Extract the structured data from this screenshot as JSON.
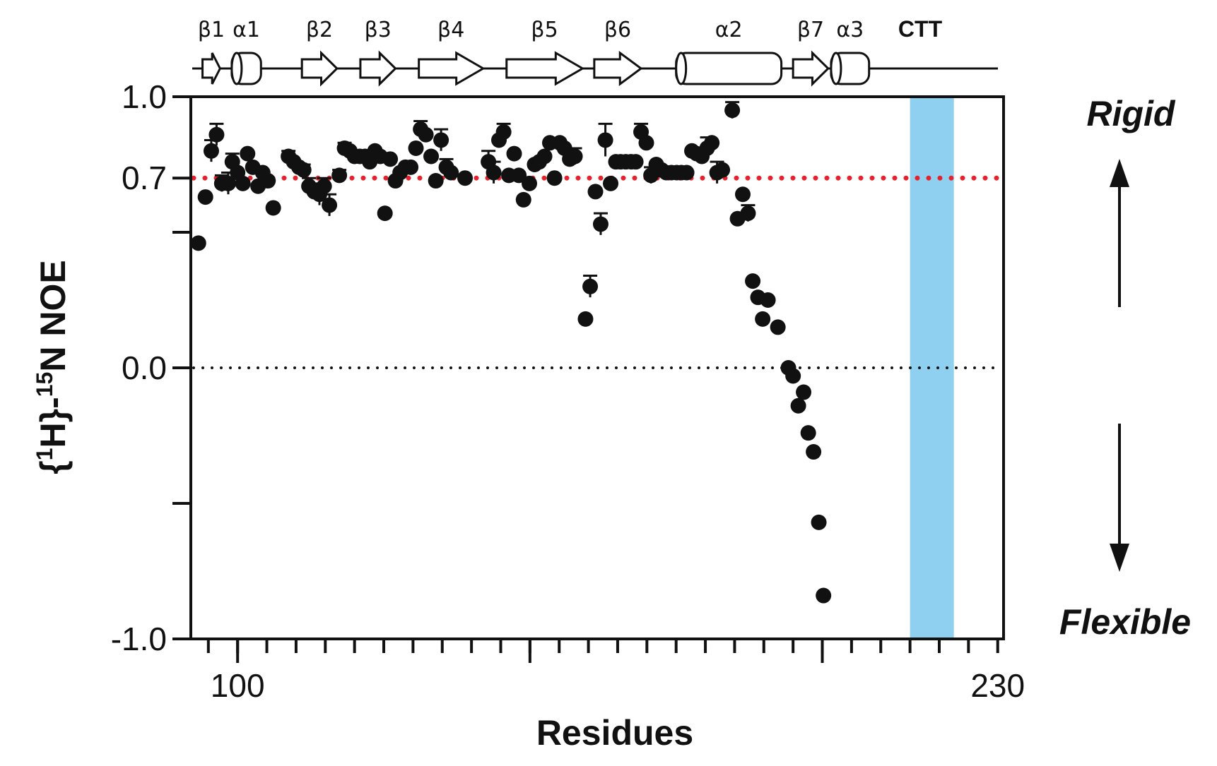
{
  "chart_data": {
    "type": "scatter",
    "title": "",
    "xlabel": "Residues",
    "ylabel_parts": [
      "{",
      "1",
      "H}-",
      "15",
      "N NOE"
    ],
    "xlim": [
      92,
      231
    ],
    "ylim": [
      -1.0,
      1.0
    ],
    "x_tick_labels": [
      {
        "value": 100,
        "label": "100"
      },
      {
        "value": 230,
        "label": "230"
      }
    ],
    "x_minor_ticks": [
      95,
      100,
      105,
      110,
      115,
      120,
      125,
      130,
      135,
      140,
      145,
      150,
      155,
      160,
      165,
      170,
      175,
      180,
      185,
      190,
      195,
      200,
      205,
      210,
      215,
      220,
      225,
      230
    ],
    "x_major_ticks": [
      100,
      150,
      200
    ],
    "y_ticks": [
      {
        "value": 1.0,
        "label": "1.0"
      },
      {
        "value": 0.7,
        "label": "0.7"
      },
      {
        "value": 0.5,
        "label": ""
      },
      {
        "value": 0.0,
        "label": "0.0"
      },
      {
        "value": -0.5,
        "label": ""
      },
      {
        "value": -1.0,
        "label": "-1.0"
      }
    ],
    "reference_lines": [
      {
        "value": 0.7,
        "color": "#e8202a",
        "style": "dotted"
      },
      {
        "value": 0.0,
        "color": "#111111",
        "style": "dotted"
      }
    ],
    "highlight_region": {
      "x_range": [
        215,
        222.5
      ],
      "color": "#8fd0f0"
    },
    "grid": false,
    "side_labels": {
      "top": "Rigid",
      "bottom": "Flexible"
    },
    "secondary_structure": [
      {
        "label": "β1",
        "type": "strand",
        "start": 94,
        "end": 97
      },
      {
        "label": "α1",
        "type": "helix",
        "start": 99,
        "end": 104
      },
      {
        "label": "β2",
        "type": "strand",
        "start": 111,
        "end": 117
      },
      {
        "label": "β3",
        "type": "strand",
        "start": 121,
        "end": 127
      },
      {
        "label": "β4",
        "type": "strand",
        "start": 131,
        "end": 142
      },
      {
        "label": "β5",
        "type": "strand",
        "start": 146,
        "end": 159
      },
      {
        "label": "β6",
        "type": "strand",
        "start": 161,
        "end": 169
      },
      {
        "label": "α2",
        "type": "helix",
        "start": 175,
        "end": 193
      },
      {
        "label": "β7",
        "type": "strand",
        "start": 195,
        "end": 201
      },
      {
        "label": "α3",
        "type": "helix",
        "start": 201.5,
        "end": 208
      },
      {
        "label": "CTT",
        "type": "coil",
        "start": 208,
        "end": 231
      }
    ],
    "series": [
      {
        "marker": "circle",
        "color": "#111111",
        "points": [
          {
            "x": 93.3,
            "y": 0.46
          },
          {
            "x": 94.5,
            "y": 0.63
          },
          {
            "x": 95.5,
            "y": 0.8,
            "err": 0.04
          },
          {
            "x": 96.4,
            "y": 0.86,
            "err": 0.04
          },
          {
            "x": 97.3,
            "y": 0.68,
            "err": 0.03
          },
          {
            "x": 98.4,
            "y": 0.68,
            "err": 0.04
          },
          {
            "x": 99.1,
            "y": 0.76,
            "err": 0.03
          },
          {
            "x": 100.0,
            "y": 0.72
          },
          {
            "x": 100.9,
            "y": 0.68
          },
          {
            "x": 101.7,
            "y": 0.79
          },
          {
            "x": 102.6,
            "y": 0.74
          },
          {
            "x": 103.5,
            "y": 0.67
          },
          {
            "x": 104.3,
            "y": 0.72
          },
          {
            "x": 105.2,
            "y": 0.69
          },
          {
            "x": 106.1,
            "y": 0.59
          },
          {
            "x": 108.7,
            "y": 0.78,
            "err": 0.02
          },
          {
            "x": 109.6,
            "y": 0.76
          },
          {
            "x": 110.5,
            "y": 0.74
          },
          {
            "x": 111.3,
            "y": 0.73,
            "err": 0.02
          },
          {
            "x": 112.2,
            "y": 0.67,
            "err": 0.03
          },
          {
            "x": 113.1,
            "y": 0.65
          },
          {
            "x": 114.0,
            "y": 0.64,
            "err": 0.04
          },
          {
            "x": 114.8,
            "y": 0.67,
            "err": 0.03
          },
          {
            "x": 115.7,
            "y": 0.6,
            "err": 0.04
          },
          {
            "x": 117.4,
            "y": 0.71,
            "err": 0.02
          },
          {
            "x": 118.3,
            "y": 0.81,
            "err": 0.02
          },
          {
            "x": 119.2,
            "y": 0.8
          },
          {
            "x": 120.0,
            "y": 0.78,
            "err": 0.02
          },
          {
            "x": 120.9,
            "y": 0.78
          },
          {
            "x": 121.8,
            "y": 0.78
          },
          {
            "x": 122.6,
            "y": 0.76
          },
          {
            "x": 123.5,
            "y": 0.8
          },
          {
            "x": 124.4,
            "y": 0.78
          },
          {
            "x": 125.2,
            "y": 0.57
          },
          {
            "x": 126.1,
            "y": 0.77
          },
          {
            "x": 127.0,
            "y": 0.69
          },
          {
            "x": 127.8,
            "y": 0.72
          },
          {
            "x": 128.7,
            "y": 0.74
          },
          {
            "x": 129.6,
            "y": 0.74
          },
          {
            "x": 130.5,
            "y": 0.81
          },
          {
            "x": 131.3,
            "y": 0.88,
            "err": 0.03
          },
          {
            "x": 132.2,
            "y": 0.86
          },
          {
            "x": 133.1,
            "y": 0.78
          },
          {
            "x": 133.9,
            "y": 0.69
          },
          {
            "x": 134.8,
            "y": 0.84,
            "err": 0.04
          },
          {
            "x": 135.7,
            "y": 0.74,
            "err": 0.03
          },
          {
            "x": 136.5,
            "y": 0.72
          },
          {
            "x": 138.9,
            "y": 0.7
          },
          {
            "x": 142.9,
            "y": 0.76,
            "err": 0.04
          },
          {
            "x": 143.8,
            "y": 0.72,
            "err": 0.04
          },
          {
            "x": 144.7,
            "y": 0.84
          },
          {
            "x": 145.5,
            "y": 0.87,
            "err": 0.03
          },
          {
            "x": 146.4,
            "y": 0.71
          },
          {
            "x": 147.3,
            "y": 0.79
          },
          {
            "x": 148.1,
            "y": 0.71
          },
          {
            "x": 148.9,
            "y": 0.62
          },
          {
            "x": 149.9,
            "y": 0.68
          },
          {
            "x": 150.8,
            "y": 0.75
          },
          {
            "x": 151.6,
            "y": 0.76
          },
          {
            "x": 152.5,
            "y": 0.78
          },
          {
            "x": 153.4,
            "y": 0.83
          },
          {
            "x": 154.2,
            "y": 0.7
          },
          {
            "x": 155.1,
            "y": 0.83
          },
          {
            "x": 155.9,
            "y": 0.81
          },
          {
            "x": 156.8,
            "y": 0.77
          },
          {
            "x": 157.7,
            "y": 0.78,
            "err": 0.03
          },
          {
            "x": 159.5,
            "y": 0.18
          },
          {
            "x": 160.3,
            "y": 0.3,
            "err": 0.04
          },
          {
            "x": 161.2,
            "y": 0.65
          },
          {
            "x": 162.1,
            "y": 0.53,
            "err": 0.04
          },
          {
            "x": 162.9,
            "y": 0.84,
            "err": 0.06
          },
          {
            "x": 163.8,
            "y": 0.68
          },
          {
            "x": 164.7,
            "y": 0.76
          },
          {
            "x": 165.5,
            "y": 0.76
          },
          {
            "x": 166.4,
            "y": 0.76
          },
          {
            "x": 167.3,
            "y": 0.76
          },
          {
            "x": 168.1,
            "y": 0.76
          },
          {
            "x": 169.0,
            "y": 0.87,
            "err": 0.03
          },
          {
            "x": 169.9,
            "y": 0.83
          },
          {
            "x": 170.7,
            "y": 0.71,
            "err": 0.03
          },
          {
            "x": 171.6,
            "y": 0.75
          },
          {
            "x": 172.5,
            "y": 0.73
          },
          {
            "x": 173.3,
            "y": 0.72
          },
          {
            "x": 174.2,
            "y": 0.72
          },
          {
            "x": 175.1,
            "y": 0.72
          },
          {
            "x": 175.9,
            "y": 0.72
          },
          {
            "x": 176.8,
            "y": 0.72
          },
          {
            "x": 177.7,
            "y": 0.8
          },
          {
            "x": 178.5,
            "y": 0.79
          },
          {
            "x": 179.4,
            "y": 0.78
          },
          {
            "x": 180.3,
            "y": 0.81,
            "err": 0.04
          },
          {
            "x": 181.1,
            "y": 0.83
          },
          {
            "x": 182.0,
            "y": 0.72,
            "err": 0.04
          },
          {
            "x": 182.9,
            "y": 0.73
          },
          {
            "x": 184.6,
            "y": 0.95,
            "err": 0.03
          },
          {
            "x": 185.5,
            "y": 0.55
          },
          {
            "x": 186.4,
            "y": 0.64
          },
          {
            "x": 187.3,
            "y": 0.57,
            "err": 0.03
          },
          {
            "x": 188.1,
            "y": 0.32
          },
          {
            "x": 189.0,
            "y": 0.26
          },
          {
            "x": 189.8,
            "y": 0.18
          },
          {
            "x": 190.7,
            "y": 0.25
          },
          {
            "x": 192.4,
            "y": 0.15
          },
          {
            "x": 194.2,
            "y": 0.0
          },
          {
            "x": 195.0,
            "y": -0.03
          },
          {
            "x": 195.9,
            "y": -0.14
          },
          {
            "x": 196.8,
            "y": -0.09
          },
          {
            "x": 197.6,
            "y": -0.24
          },
          {
            "x": 198.5,
            "y": -0.31
          },
          {
            "x": 199.4,
            "y": -0.57
          },
          {
            "x": 200.2,
            "y": -0.84
          }
        ]
      }
    ]
  }
}
